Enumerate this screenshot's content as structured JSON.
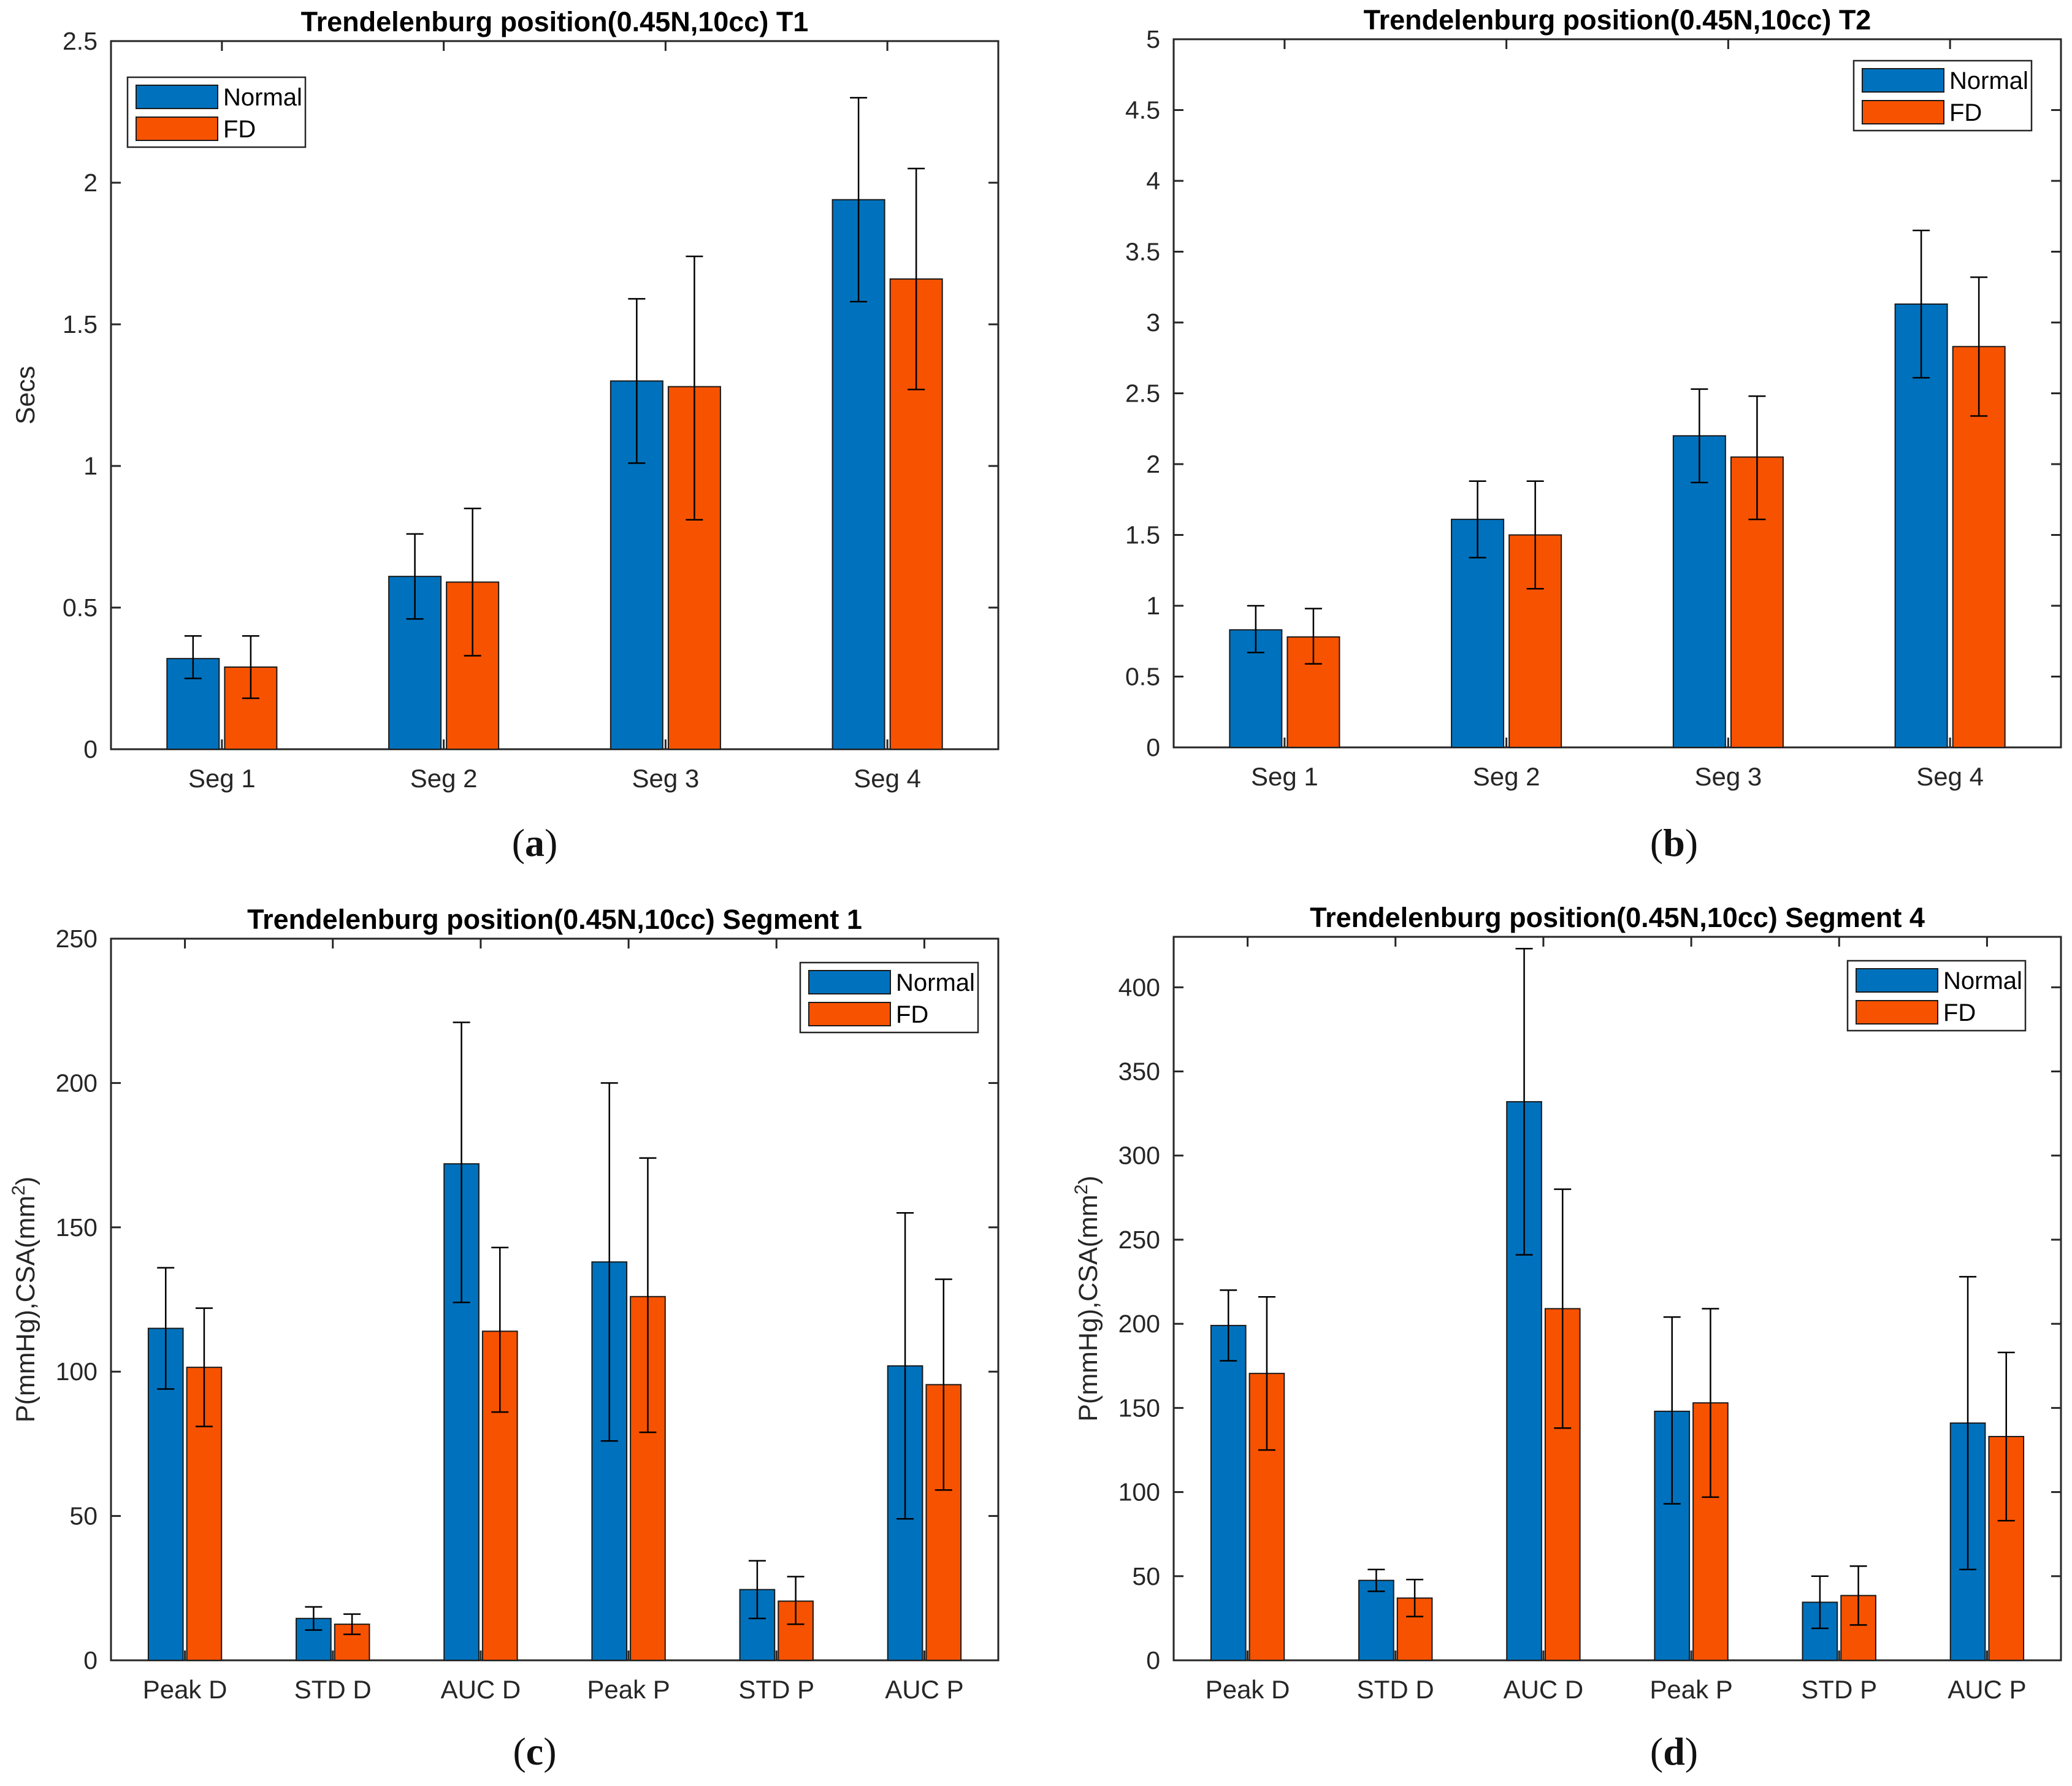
{
  "colors": {
    "normal": "#0072BD",
    "fd": "#F75200",
    "axis": "#262626",
    "grid": "#ffffff"
  },
  "captions": [
    {
      "open": "(",
      "letter": "a",
      "close": ")"
    },
    {
      "open": "(",
      "letter": "b",
      "close": ")"
    },
    {
      "open": "(",
      "letter": "c",
      "close": ")"
    },
    {
      "open": "(",
      "letter": "d",
      "close": ")"
    }
  ],
  "chart_data": [
    {
      "id": "a",
      "type": "bar",
      "title": "Trendelenburg position(0.45N,10cc) T1",
      "xlabel": "",
      "ylabel": "Secs",
      "ylim": [
        0,
        2.5
      ],
      "yticks": [
        "0",
        "0.5",
        "1",
        "1.5",
        "2",
        "2.5"
      ],
      "ytick_values": [
        0,
        0.5,
        1,
        1.5,
        2,
        2.5
      ],
      "legend_position": "top-left",
      "categories": [
        "Seg 1",
        "Seg 2",
        "Seg 3",
        "Seg 4"
      ],
      "series": [
        {
          "name": "Normal",
          "values": [
            0.32,
            0.61,
            1.3,
            1.94
          ],
          "err_low": [
            0.25,
            0.46,
            1.01,
            1.58
          ],
          "err_high": [
            0.4,
            0.76,
            1.59,
            2.3
          ]
        },
        {
          "name": "FD",
          "values": [
            0.29,
            0.59,
            1.28,
            1.66
          ],
          "err_low": [
            0.18,
            0.33,
            0.81,
            1.27
          ],
          "err_high": [
            0.4,
            0.85,
            1.74,
            2.05
          ]
        }
      ]
    },
    {
      "id": "b",
      "type": "bar",
      "title": "Trendelenburg position(0.45N,10cc) T2",
      "xlabel": "",
      "ylabel": "",
      "ylim": [
        0,
        5
      ],
      "yticks": [
        "0",
        "0.5",
        "1",
        "1.5",
        "2",
        "2.5",
        "3",
        "3.5",
        "4",
        "4.5",
        "5"
      ],
      "ytick_values": [
        0,
        0.5,
        1,
        1.5,
        2,
        2.5,
        3,
        3.5,
        4,
        4.5,
        5
      ],
      "legend_position": "top-right",
      "categories": [
        "Seg 1",
        "Seg 2",
        "Seg 3",
        "Seg 4"
      ],
      "series": [
        {
          "name": "Normal",
          "values": [
            0.83,
            1.61,
            2.2,
            3.13
          ],
          "err_low": [
            0.67,
            1.34,
            1.87,
            2.61
          ],
          "err_high": [
            1.0,
            1.88,
            2.53,
            3.65
          ]
        },
        {
          "name": "FD",
          "values": [
            0.78,
            1.5,
            2.05,
            2.83
          ],
          "err_low": [
            0.59,
            1.12,
            1.61,
            2.34
          ],
          "err_high": [
            0.98,
            1.88,
            2.48,
            3.32
          ]
        }
      ]
    },
    {
      "id": "c",
      "type": "bar",
      "title": "Trendelenburg position(0.45N,10cc) Segment 1",
      "xlabel": "",
      "ylabel": "P(mmHg),CSA(mm",
      "ylabel_sup": "2",
      "ylabel_end": ")",
      "ylim": [
        0,
        250
      ],
      "yticks": [
        "0",
        "50",
        "100",
        "150",
        "200",
        "250"
      ],
      "ytick_values": [
        0,
        50,
        100,
        150,
        200,
        250
      ],
      "legend_position": "top-right",
      "categories": [
        "Peak D",
        "STD D",
        "AUC D",
        "Peak P",
        "STD P",
        "AUC P"
      ],
      "series": [
        {
          "name": "Normal",
          "values": [
            115,
            14.5,
            172,
            138,
            24.5,
            102
          ],
          "err_low": [
            94,
            10.5,
            124,
            76,
            14.5,
            49
          ],
          "err_high": [
            136,
            18.5,
            221,
            200,
            34.5,
            155
          ]
        },
        {
          "name": "FD",
          "values": [
            101.5,
            12.5,
            114,
            126,
            20.5,
            95.5
          ],
          "err_low": [
            81,
            9,
            86,
            79,
            12.5,
            59
          ],
          "err_high": [
            122,
            16,
            143,
            174,
            29,
            132
          ]
        }
      ]
    },
    {
      "id": "d",
      "type": "bar",
      "title": "Trendelenburg position(0.45N,10cc) Segment 4",
      "xlabel": "",
      "ylabel": "P(mmHg),CSA(mm",
      "ylabel_sup": "2",
      "ylabel_end": ")",
      "ylim": [
        0,
        430
      ],
      "yticks": [
        "0",
        "50",
        "100",
        "150",
        "200",
        "250",
        "300",
        "350",
        "400"
      ],
      "ytick_values": [
        0,
        50,
        100,
        150,
        200,
        250,
        300,
        350,
        400
      ],
      "legend_position": "top-right",
      "categories": [
        "Peak D",
        "STD D",
        "AUC D",
        "Peak P",
        "STD P",
        "AUC P"
      ],
      "series": [
        {
          "name": "Normal",
          "values": [
            199,
            47.5,
            332,
            148,
            34.5,
            141
          ],
          "err_low": [
            178,
            41,
            241,
            93,
            19,
            54
          ],
          "err_high": [
            220,
            54,
            423,
            204,
            50,
            228
          ]
        },
        {
          "name": "FD",
          "values": [
            170.5,
            37,
            209,
            153,
            38.5,
            133
          ],
          "err_low": [
            125,
            26,
            138,
            97,
            21,
            83
          ],
          "err_high": [
            216,
            48,
            280,
            209,
            56,
            183
          ]
        }
      ]
    }
  ]
}
